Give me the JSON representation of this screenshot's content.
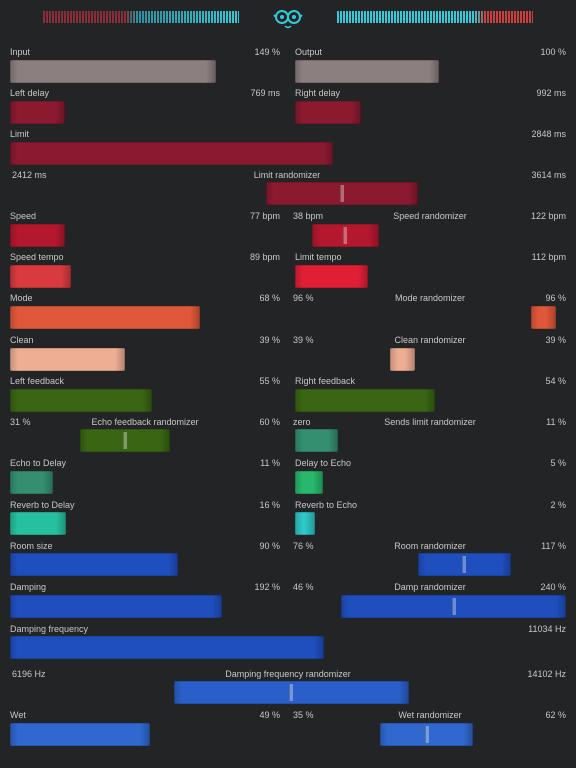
{
  "colors": {
    "background": "#232426",
    "gray": "#8c7f80",
    "maroon": "#8b1a30",
    "crimson": "#b3182f",
    "red": "#d93a40",
    "bright_red": "#e01f35",
    "orange": "#e0583a",
    "peach": "#eeae94",
    "olive": "#3a6613",
    "teal_green": "#348f70",
    "green": "#27b86c",
    "turquoise": "#26c0a0",
    "cyan": "#2ec8c8",
    "blue": "#1f4fbf",
    "light_blue": "#3068d0"
  },
  "header": {
    "logo_icon": "pilot-goggles-icon"
  },
  "controls": {
    "input": {
      "label": "Input",
      "value": "149 %"
    },
    "output": {
      "label": "Output",
      "value": "100 %"
    },
    "left_delay": {
      "label": "Left delay",
      "value": "769 ms"
    },
    "right_delay": {
      "label": "Right delay",
      "value": "992 ms"
    },
    "limit": {
      "label": "Limit",
      "value": "2848 ms"
    },
    "limit_randomizer": {
      "label": "Limit  randomizer",
      "min": "2412 ms",
      "max": "3614 ms"
    },
    "speed": {
      "label": "Speed",
      "value": "77 bpm"
    },
    "speed_randomizer": {
      "label": "Speed  randomizer",
      "min": "38 bpm",
      "max": "122 bpm"
    },
    "speed_tempo": {
      "label": "Speed tempo",
      "value": "89 bpm"
    },
    "limit_tempo": {
      "label": "Limit tempo",
      "value": "112 bpm"
    },
    "mode": {
      "label": "Mode",
      "value": "68 %"
    },
    "mode_randomizer": {
      "label": "Mode  randomizer",
      "min": "96 %",
      "max": "96 %"
    },
    "clean": {
      "label": "Clean",
      "value": "39 %"
    },
    "clean_randomizer": {
      "label": "Clean  randomizer",
      "min": "39 %",
      "max": "39 %"
    },
    "left_feedback": {
      "label": "Left feedback",
      "value": "55 %"
    },
    "right_feedback": {
      "label": "Right feedback",
      "value": "54 %"
    },
    "echo_feedback_randomizer": {
      "label": "Echo feedback  randomizer",
      "min": "31 %",
      "max": "60 %"
    },
    "sends_limit_randomizer": {
      "label": "Sends limit  randomizer",
      "min": "zero",
      "max": "11 %"
    },
    "echo_to_delay": {
      "label": "Echo to Delay",
      "value": "11 %"
    },
    "delay_to_echo": {
      "label": "Delay to Echo",
      "value": "5 %"
    },
    "reverb_to_delay": {
      "label": "Reverb to Delay",
      "value": "16 %"
    },
    "reverb_to_echo": {
      "label": "Reverb to Echo",
      "value": "2 %"
    },
    "room_size": {
      "label": "Room size",
      "value": "90 %"
    },
    "room_randomizer": {
      "label": "Room randomizer",
      "min": "76 %",
      "max": "117 %"
    },
    "damping": {
      "label": "Damping",
      "value": "192 %"
    },
    "damp_randomizer": {
      "label": "Damp randomizer",
      "min": "46 %",
      "max": "240 %"
    },
    "damping_frequency": {
      "label": "Damping frequency",
      "value": "11034 Hz"
    },
    "damping_frequency_randomizer": {
      "label": "Damping frequency  randomizer",
      "min": "6196 Hz",
      "max": "14102 Hz"
    },
    "wet": {
      "label": "Wet",
      "value": "49 %"
    },
    "wet_randomizer": {
      "label": "Wet  randomizer",
      "min": "35 %",
      "max": "62 %"
    }
  }
}
